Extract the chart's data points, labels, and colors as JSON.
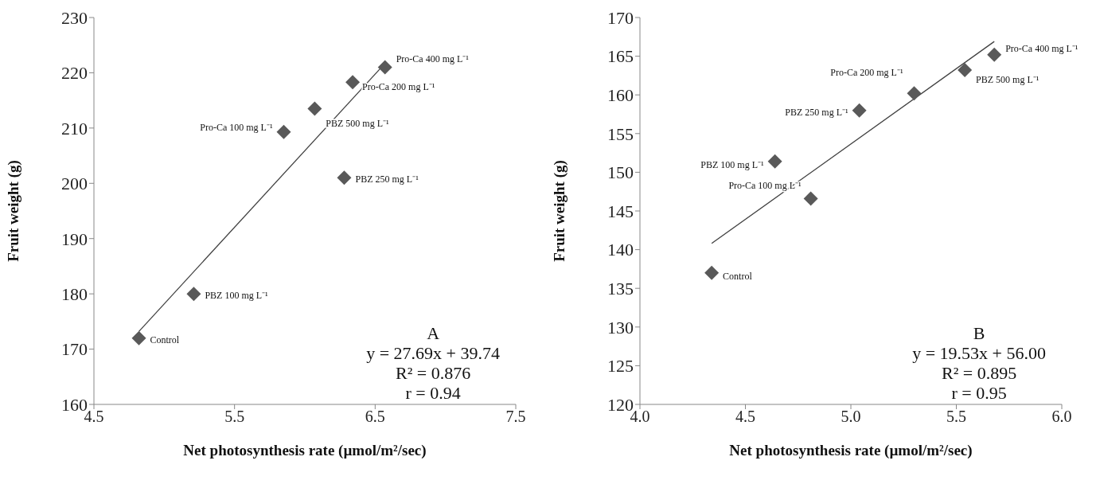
{
  "chart_data": [
    {
      "type": "scatter",
      "xlabel": "Net photosynthesis rate (µmol/m²/sec)",
      "ylabel": "Fruit weight (g)",
      "xlim": [
        4.5,
        7.5
      ],
      "xticks": [
        4.5,
        5.5,
        6.5,
        7.5
      ],
      "ylim": [
        160,
        230
      ],
      "yticks": [
        160,
        170,
        180,
        190,
        200,
        210,
        220,
        230
      ],
      "grid": false,
      "series": [
        {
          "marker": "diamond",
          "color": "#595959",
          "x": [
            4.82,
            5.21,
            5.85,
            6.07,
            6.28,
            6.34,
            6.57
          ],
          "values": [
            172,
            180,
            209.3,
            213.5,
            201,
            218.3,
            221
          ]
        },
        {
          "type": "line",
          "marker": "none",
          "color": "#404040",
          "x": [
            4.82,
            6.57
          ],
          "values": [
            173.2,
            221.7
          ]
        }
      ],
      "annotations": [
        {
          "text": "Control",
          "x": 4.82,
          "y": 172
        },
        {
          "text": "PBZ 100 mg L⁻¹",
          "x": 5.21,
          "y": 180
        },
        {
          "text": "Pro-Ca 100 mg L⁻¹",
          "x": 5.85,
          "y": 209.3
        },
        {
          "text": "PBZ 500 mg L⁻¹",
          "x": 6.07,
          "y": 213.5
        },
        {
          "text": "PBZ 250 mg L⁻¹",
          "x": 6.28,
          "y": 201
        },
        {
          "text": "Pro-Ca 200 mg L⁻¹",
          "x": 6.34,
          "y": 218.3
        },
        {
          "text": "Pro-Ca 400 mg L⁻¹",
          "x": 6.57,
          "y": 221
        },
        "A",
        "y = 27.69x + 39.74",
        "R² = 0.876",
        "r = 0.94"
      ]
    },
    {
      "type": "scatter",
      "xlabel": "Net photosynthesis rate (µmol/m²/sec)",
      "ylabel": "Fruit weight (g)",
      "xlim": [
        4,
        6
      ],
      "xticks": [
        {
          "value": 4,
          "label": "4.0"
        },
        4.5,
        {
          "value": 5,
          "label": "5.0"
        },
        5.5,
        {
          "value": 6,
          "label": "6.0"
        }
      ],
      "ylim": [
        120,
        170
      ],
      "yticks": [
        120,
        125,
        130,
        135,
        140,
        145,
        150,
        155,
        160,
        165,
        170
      ],
      "grid": false,
      "series": [
        {
          "marker": "diamond",
          "color": "#595959",
          "x": [
            4.34,
            4.64,
            4.81,
            5.04,
            5.3,
            5.54,
            5.68
          ],
          "values": [
            137,
            151.4,
            146.6,
            158,
            160.2,
            163.2,
            165.2
          ]
        },
        {
          "type": "line",
          "marker": "none",
          "color": "#404040",
          "x": [
            4.34,
            5.68
          ],
          "values": [
            140.8,
            166.9
          ]
        }
      ],
      "annotations": [
        {
          "text": "Control",
          "x": 4.34,
          "y": 137
        },
        {
          "text": "PBZ 100 mg L⁻¹",
          "x": 4.64,
          "y": 151.4
        },
        {
          "text": "Pro-Ca 100 mg L⁻¹",
          "x": 4.81,
          "y": 146.6
        },
        {
          "text": "PBZ 250 mg L⁻¹",
          "x": 5.04,
          "y": 158
        },
        {
          "text": "Pro-Ca 200 mg L⁻¹",
          "x": 5.3,
          "y": 160.2
        },
        {
          "text": "PBZ 500 mg L⁻¹",
          "x": 5.54,
          "y": 163.2
        },
        {
          "text": "Pro-Ca 400 mg L⁻¹",
          "x": 5.68,
          "y": 165.2
        },
        "B",
        "y = 19.53x + 56.00",
        "R² = 0.895",
        "r = 0.95"
      ]
    }
  ]
}
